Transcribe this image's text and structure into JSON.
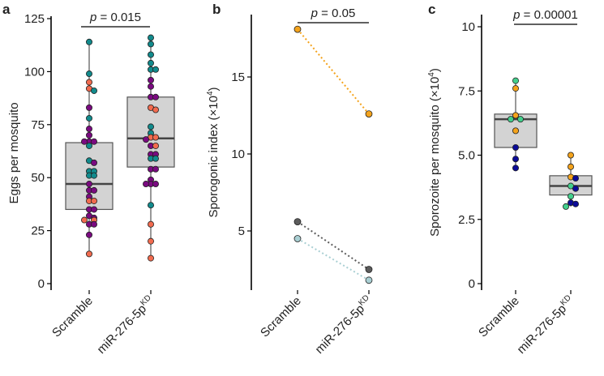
{
  "palette": {
    "teal": "#118a8c",
    "purple": "#7a0a80",
    "coral": "#f26b4f",
    "orange": "#f4a31c",
    "darkgrey": "#5c5c5c",
    "lightblue": "#a9cfd3",
    "green": "#43cf8c",
    "navy": "#0b0b98",
    "box_fill": "#d3d3d3"
  },
  "chart_data": [
    {
      "panel": "a",
      "type": "box",
      "ylabel": "Eggs per mosquito",
      "ylim": [
        0,
        125
      ],
      "yticks": [
        0,
        25,
        50,
        75,
        100,
        125
      ],
      "ytick_labels": [
        "0",
        "25",
        "50",
        "75",
        "100",
        "125"
      ],
      "categories": [
        "Scramble",
        "miR-276-5p"
      ],
      "category_superscripts": [
        "",
        "KD"
      ],
      "pvalue": {
        "label": "p",
        "text": " = 0.015"
      },
      "boxes": [
        {
          "min": 14,
          "q1": 35,
          "median": 47,
          "q3": 66.5,
          "max": 114
        },
        {
          "min": 12,
          "q1": 55,
          "median": 68.5,
          "q3": 88,
          "max": 116
        }
      ],
      "points": [
        [
          [
            114,
            "teal"
          ],
          [
            99,
            "teal"
          ],
          [
            95,
            "coral"
          ],
          [
            92,
            "coral"
          ],
          [
            91,
            "teal"
          ],
          [
            83,
            "purple"
          ],
          [
            78,
            "teal"
          ],
          [
            73,
            "purple"
          ],
          [
            70,
            "purple"
          ],
          [
            67,
            "purple"
          ],
          [
            67,
            "purple"
          ],
          [
            67,
            "purple"
          ],
          [
            65,
            "teal"
          ],
          [
            58,
            "teal"
          ],
          [
            57,
            "purple"
          ],
          [
            53,
            "teal"
          ],
          [
            53,
            "teal"
          ],
          [
            51,
            "teal"
          ],
          [
            51,
            "teal"
          ],
          [
            47,
            "purple"
          ],
          [
            44,
            "purple"
          ],
          [
            44,
            "purple"
          ],
          [
            41,
            "purple"
          ],
          [
            39,
            "coral"
          ],
          [
            39,
            "coral"
          ],
          [
            35,
            "purple"
          ],
          [
            35,
            "purple"
          ],
          [
            32,
            "purple"
          ],
          [
            31,
            "purple"
          ],
          [
            30,
            "coral"
          ],
          [
            30,
            "coral"
          ],
          [
            28,
            "purple"
          ],
          [
            28,
            "purple"
          ],
          [
            23,
            "purple"
          ],
          [
            14,
            "coral"
          ]
        ],
        [
          [
            116,
            "teal"
          ],
          [
            113,
            "teal"
          ],
          [
            108,
            "teal"
          ],
          [
            104,
            "teal"
          ],
          [
            101,
            "teal"
          ],
          [
            101,
            "teal"
          ],
          [
            96,
            "purple"
          ],
          [
            93,
            "purple"
          ],
          [
            88,
            "purple"
          ],
          [
            88,
            "purple"
          ],
          [
            83,
            "coral"
          ],
          [
            82,
            "coral"
          ],
          [
            74,
            "teal"
          ],
          [
            71,
            "teal"
          ],
          [
            69,
            "coral"
          ],
          [
            69,
            "coral"
          ],
          [
            68,
            "purple"
          ],
          [
            65,
            "purple"
          ],
          [
            65,
            "coral"
          ],
          [
            61,
            "purple"
          ],
          [
            61,
            "purple"
          ],
          [
            59,
            "teal"
          ],
          [
            59,
            "teal"
          ],
          [
            54,
            "purple"
          ],
          [
            54,
            "purple"
          ],
          [
            49,
            "purple"
          ],
          [
            47,
            "purple"
          ],
          [
            47,
            "purple"
          ],
          [
            47,
            "purple"
          ],
          [
            37,
            "teal"
          ],
          [
            28,
            "coral"
          ],
          [
            20,
            "coral"
          ],
          [
            12,
            "coral"
          ]
        ]
      ]
    },
    {
      "panel": "b",
      "type": "line",
      "ylabel": "Sporogonic index (×10",
      "ylabel_sup": "4",
      "ylabel_close": ")",
      "ylim": [
        1,
        18.5
      ],
      "yticks": [
        5,
        10,
        15
      ],
      "ytick_labels": [
        "5",
        "10",
        "15"
      ],
      "categories": [
        "Scramble",
        "miR-276-5p"
      ],
      "category_superscripts": [
        "",
        "KD"
      ],
      "pvalue": {
        "label": "p",
        "text": " = 0.05"
      },
      "series": [
        {
          "color": "orange",
          "values": [
            18.1,
            12.6
          ]
        },
        {
          "color": "darkgrey",
          "values": [
            5.6,
            2.5
          ]
        },
        {
          "color": "lightblue",
          "values": [
            4.5,
            1.8
          ]
        }
      ]
    },
    {
      "panel": "c",
      "type": "box",
      "ylabel": "Sporozoite per mosquito (×10",
      "ylabel_sup": "4",
      "ylabel_close": ")",
      "ylim": [
        0,
        10.5
      ],
      "yticks": [
        0,
        2.5,
        5,
        7.5,
        10
      ],
      "ytick_labels": [
        "0",
        "2.5",
        "5.0",
        "7.5",
        "10"
      ],
      "categories": [
        "Scramble",
        "miR-276-5p"
      ],
      "category_superscripts": [
        "",
        "KD"
      ],
      "pvalue": {
        "label": "p",
        "text": " = 0.00001"
      },
      "boxes": [
        {
          "min": 4.5,
          "q1": 5.3,
          "median": 6.4,
          "q3": 6.6,
          "max": 7.9
        },
        {
          "min": 3.0,
          "q1": 3.45,
          "median": 3.8,
          "q3": 4.2,
          "max": 5.0
        }
      ],
      "points": [
        [
          [
            7.9,
            "green"
          ],
          [
            7.6,
            "orange"
          ],
          [
            6.55,
            "orange"
          ],
          [
            6.4,
            "green"
          ],
          [
            6.4,
            "green"
          ],
          [
            5.95,
            "orange"
          ],
          [
            5.3,
            "navy"
          ],
          [
            4.85,
            "navy"
          ],
          [
            4.5,
            "navy"
          ]
        ],
        [
          [
            5.0,
            "orange"
          ],
          [
            4.55,
            "orange"
          ],
          [
            4.15,
            "orange"
          ],
          [
            4.1,
            "navy"
          ],
          [
            3.8,
            "green"
          ],
          [
            3.7,
            "navy"
          ],
          [
            3.4,
            "green"
          ],
          [
            3.15,
            "navy"
          ],
          [
            3.1,
            "navy"
          ],
          [
            3.0,
            "green"
          ]
        ]
      ]
    }
  ]
}
